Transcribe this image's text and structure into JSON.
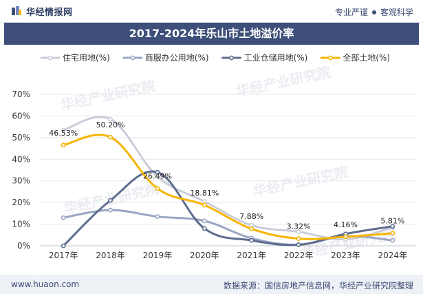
{
  "header": {
    "logo_text": "华经情报网",
    "tagline_left": "专业严谨",
    "tagline_right": "客观科学"
  },
  "footer": {
    "site": "www.huaon.com",
    "source": "数据来源：国信房地产信息网，华经产业研究院整理"
  },
  "watermark_text": "华经产业研究院",
  "colors": {
    "title_bg": "#3d4f7a",
    "residential": "#c9cdd9",
    "commercial": "#9aa5c4",
    "industrial": "#5d6c8e",
    "all": "#f7b500"
  },
  "chart_data": {
    "type": "line",
    "title": "2017-2024年乐山市土地溢价率",
    "categories": [
      "2017年",
      "2018年",
      "2019年",
      "2020年",
      "2021年",
      "2022年",
      "2023年",
      "2024年"
    ],
    "ylim": [
      0,
      70
    ],
    "yticks": [
      "0%",
      "10%",
      "20%",
      "30%",
      "40%",
      "50%",
      "60%",
      "70%"
    ],
    "grid": true,
    "legend_position": "top",
    "series": [
      {
        "name": "住宅用地(%)",
        "color": "#c9cdd9",
        "values": [
          53.5,
          58.5,
          32.0,
          20.5,
          9.5,
          6.5,
          3.0,
          8.5
        ]
      },
      {
        "name": "商服办公用地(%)",
        "color": "#9aa5c4",
        "values": [
          13.0,
          16.5,
          13.5,
          11.5,
          3.5,
          0.5,
          4.5,
          2.5
        ]
      },
      {
        "name": "工业仓储用地(%)",
        "color": "#5d6c8e",
        "values": [
          0.0,
          21.0,
          34.0,
          8.0,
          2.5,
          0.5,
          5.5,
          9.0
        ]
      },
      {
        "name": "全部土地(%)",
        "color": "#f7b500",
        "values": [
          46.53,
          50.2,
          26.49,
          18.81,
          7.88,
          3.32,
          4.16,
          5.81
        ]
      }
    ],
    "data_labels": [
      "46.53%",
      "50.20%",
      "26.49%",
      "18.81%",
      "7.88%",
      "3.32%",
      "4.16%",
      "5.81%"
    ]
  }
}
